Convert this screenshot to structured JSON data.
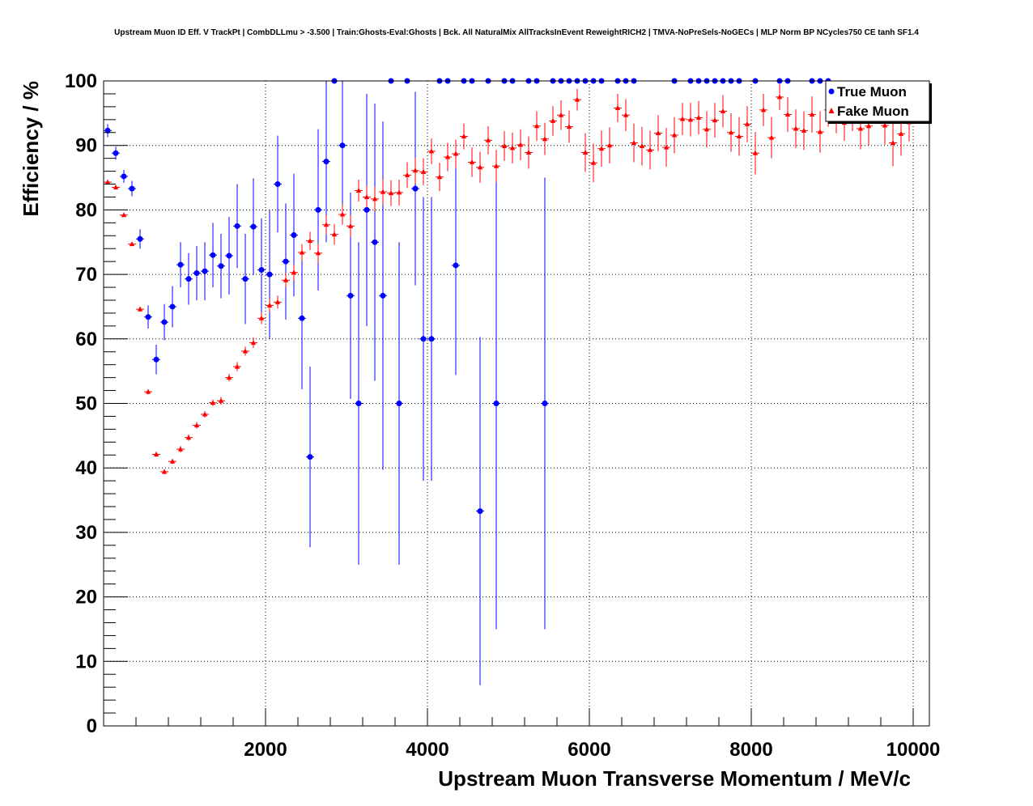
{
  "chart_data": {
    "type": "scatter",
    "title": "Upstream Muon ID Eff. V TrackPt | CombDLLmu > -3.500 | Train:Ghosts-Eval:Ghosts | Bck. All NaturalMix AllTracksInEvent ReweightRICH2 | TMVA-NoPreSels-NoGECs | MLP Norm BP NCycles750 CE tanh SF1.4",
    "xlabel": "Upstream Muon Transverse Momentum / MeV/c",
    "ylabel": "Efficiency / %",
    "xlim": [
      0,
      10200
    ],
    "ylim": [
      0,
      100
    ],
    "x_ticks": [
      2000,
      4000,
      6000,
      8000,
      10000
    ],
    "y_ticks": [
      0,
      10,
      20,
      30,
      40,
      50,
      60,
      70,
      80,
      90,
      100
    ],
    "grid": true,
    "legend_position": "top-right",
    "colors": {
      "true_muon": "#0000ff",
      "fake_muon": "#ff0000"
    },
    "series": [
      {
        "name": "True Muon",
        "marker": "circle",
        "color": "#0000ff",
        "points": [
          [
            50,
            92.3,
            1.0
          ],
          [
            150,
            88.8,
            1.0
          ],
          [
            250,
            85.2,
            1.0
          ],
          [
            350,
            83.3,
            1.2
          ],
          [
            450,
            75.5,
            1.5
          ],
          [
            550,
            63.4,
            1.8
          ],
          [
            650,
            56.8,
            2.3
          ],
          [
            750,
            62.6,
            2.8
          ],
          [
            850,
            65.0,
            3.2
          ],
          [
            950,
            71.5,
            3.5
          ],
          [
            1050,
            69.3,
            4.0
          ],
          [
            1150,
            70.2,
            4.2
          ],
          [
            1250,
            70.5,
            4.5
          ],
          [
            1350,
            73.0,
            5.0
          ],
          [
            1450,
            71.3,
            5.0
          ],
          [
            1550,
            72.9,
            6.0
          ],
          [
            1650,
            77.5,
            6.5
          ],
          [
            1750,
            69.3,
            7.0
          ],
          [
            1850,
            77.4,
            7.5
          ],
          [
            1950,
            70.7,
            8.0
          ],
          [
            2050,
            70.0,
            10.0
          ],
          [
            2150,
            84.0,
            7.5
          ],
          [
            2250,
            72.0,
            9.0
          ],
          [
            2350,
            76.1,
            9.5
          ],
          [
            2450,
            63.2,
            11.0
          ],
          [
            2550,
            41.7,
            14.0
          ],
          [
            2650,
            80.0,
            12.5
          ],
          [
            2750,
            87.5,
            12.5
          ],
          [
            2850,
            100,
            0
          ],
          [
            2950,
            90.0,
            10.0
          ],
          [
            3050,
            66.7,
            16.0
          ],
          [
            3150,
            50.0,
            25.0
          ],
          [
            3250,
            80.0,
            18.0
          ],
          [
            3350,
            75.0,
            21.5
          ],
          [
            3450,
            66.7,
            27.0
          ],
          [
            3550,
            100,
            0
          ],
          [
            3650,
            50.0,
            25.0
          ],
          [
            3750,
            100,
            0
          ],
          [
            3850,
            83.3,
            15.0
          ],
          [
            3950,
            60.0,
            22.0
          ],
          [
            4050,
            60.0,
            22.0
          ],
          [
            4150,
            100,
            0
          ],
          [
            4250,
            100,
            0
          ],
          [
            4350,
            71.4,
            17.0
          ],
          [
            4450,
            100,
            0
          ],
          [
            4550,
            100,
            0
          ],
          [
            4650,
            33.3,
            27.0
          ],
          [
            4750,
            100,
            0
          ],
          [
            4850,
            50.0,
            35.0
          ],
          [
            4950,
            100,
            0
          ],
          [
            5050,
            100,
            0
          ],
          [
            5250,
            100,
            0
          ],
          [
            5350,
            100,
            0
          ],
          [
            5450,
            50.0,
            35.0
          ],
          [
            5550,
            100,
            0
          ],
          [
            5650,
            100,
            0
          ],
          [
            5750,
            100,
            0
          ],
          [
            5850,
            100,
            0
          ],
          [
            5950,
            100,
            0
          ],
          [
            6050,
            100,
            0
          ],
          [
            6150,
            100,
            0
          ],
          [
            6350,
            100,
            0
          ],
          [
            6450,
            100,
            0
          ],
          [
            6550,
            100,
            0
          ],
          [
            7050,
            100,
            0
          ],
          [
            7250,
            100,
            0
          ],
          [
            7350,
            100,
            0
          ],
          [
            7450,
            100,
            0
          ],
          [
            7550,
            100,
            0
          ],
          [
            7650,
            100,
            0
          ],
          [
            7750,
            100,
            0
          ],
          [
            7850,
            100,
            0
          ],
          [
            8050,
            100,
            0
          ],
          [
            8350,
            100,
            0
          ],
          [
            8450,
            100,
            0
          ],
          [
            8750,
            100,
            0
          ],
          [
            8850,
            100,
            0
          ],
          [
            8950,
            100,
            0
          ]
        ]
      },
      {
        "name": "Fake Muon",
        "marker": "triangle",
        "color": "#ff0000",
        "points": [
          [
            50,
            84.3,
            0.3
          ],
          [
            150,
            83.5,
            0.3
          ],
          [
            250,
            79.2,
            0.3
          ],
          [
            350,
            74.7,
            0.3
          ],
          [
            450,
            64.6,
            0.4
          ],
          [
            550,
            51.8,
            0.4
          ],
          [
            650,
            42.1,
            0.4
          ],
          [
            750,
            39.4,
            0.4
          ],
          [
            850,
            41.0,
            0.4
          ],
          [
            950,
            42.9,
            0.5
          ],
          [
            1050,
            44.7,
            0.5
          ],
          [
            1150,
            46.6,
            0.5
          ],
          [
            1250,
            48.3,
            0.5
          ],
          [
            1350,
            50.1,
            0.5
          ],
          [
            1450,
            50.4,
            0.6
          ],
          [
            1550,
            54.0,
            0.6
          ],
          [
            1650,
            55.7,
            0.7
          ],
          [
            1750,
            58.1,
            0.7
          ],
          [
            1850,
            59.4,
            0.8
          ],
          [
            1950,
            63.2,
            0.9
          ],
          [
            2050,
            65.2,
            1.0
          ],
          [
            2150,
            65.7,
            1.0
          ],
          [
            2250,
            69.1,
            1.1
          ],
          [
            2350,
            70.3,
            1.2
          ],
          [
            2450,
            73.4,
            1.3
          ],
          [
            2550,
            75.2,
            1.4
          ],
          [
            2650,
            73.3,
            1.5
          ],
          [
            2750,
            77.7,
            1.5
          ],
          [
            2850,
            76.2,
            1.6
          ],
          [
            2950,
            79.3,
            1.6
          ],
          [
            3050,
            77.5,
            1.7
          ],
          [
            3150,
            83.0,
            1.7
          ],
          [
            3250,
            82.0,
            1.8
          ],
          [
            3350,
            81.7,
            1.9
          ],
          [
            3450,
            82.8,
            2.0
          ],
          [
            3550,
            82.6,
            2.0
          ],
          [
            3650,
            82.7,
            2.0
          ],
          [
            3750,
            85.4,
            2.0
          ],
          [
            3850,
            86.1,
            2.0
          ],
          [
            3950,
            85.9,
            2.1
          ],
          [
            4050,
            89.1,
            2.0
          ],
          [
            4150,
            85.1,
            2.2
          ],
          [
            4250,
            88.2,
            2.2
          ],
          [
            4350,
            88.7,
            2.2
          ],
          [
            4450,
            91.4,
            2.0
          ],
          [
            4550,
            87.4,
            2.3
          ],
          [
            4650,
            86.6,
            2.4
          ],
          [
            4750,
            90.8,
            2.2
          ],
          [
            4850,
            86.8,
            2.5
          ],
          [
            4950,
            89.9,
            2.3
          ],
          [
            5050,
            89.6,
            2.4
          ],
          [
            5150,
            90.1,
            2.4
          ],
          [
            5250,
            88.9,
            2.5
          ],
          [
            5350,
            93.0,
            2.3
          ],
          [
            5450,
            91.0,
            2.5
          ],
          [
            5550,
            93.8,
            2.3
          ],
          [
            5650,
            94.7,
            2.3
          ],
          [
            5750,
            92.9,
            2.5
          ],
          [
            5850,
            97.1,
            1.7
          ],
          [
            5950,
            88.9,
            3.0
          ],
          [
            6050,
            87.3,
            3.0
          ],
          [
            6150,
            89.5,
            2.8
          ],
          [
            6250,
            90.0,
            2.8
          ],
          [
            6350,
            95.8,
            2.2
          ],
          [
            6450,
            94.7,
            2.5
          ],
          [
            6550,
            90.4,
            3.0
          ],
          [
            6650,
            89.9,
            3.0
          ],
          [
            6750,
            89.3,
            3.0
          ],
          [
            6850,
            91.9,
            2.8
          ],
          [
            6950,
            89.7,
            3.0
          ],
          [
            7050,
            91.6,
            2.8
          ],
          [
            7150,
            94.1,
            2.5
          ],
          [
            7250,
            94.0,
            2.6
          ],
          [
            7350,
            94.3,
            2.6
          ],
          [
            7450,
            92.5,
            2.8
          ],
          [
            7550,
            93.9,
            2.7
          ],
          [
            7650,
            95.3,
            2.5
          ],
          [
            7750,
            92.0,
            3.0
          ],
          [
            7850,
            91.4,
            3.0
          ],
          [
            7950,
            93.3,
            2.8
          ],
          [
            8050,
            88.8,
            3.3
          ],
          [
            8150,
            95.5,
            2.5
          ],
          [
            8250,
            91.2,
            3.2
          ],
          [
            8350,
            97.5,
            2.0
          ],
          [
            8450,
            94.8,
            2.7
          ],
          [
            8550,
            92.6,
            3.0
          ],
          [
            8650,
            92.3,
            3.0
          ],
          [
            8750,
            94.8,
            2.8
          ],
          [
            8850,
            92.1,
            3.2
          ],
          [
            8950,
            95.5,
            2.6
          ],
          [
            9050,
            94.7,
            2.8
          ],
          [
            9150,
            93.5,
            2.8
          ],
          [
            9250,
            94.9,
            2.7
          ],
          [
            9350,
            92.6,
            3.2
          ],
          [
            9450,
            93.0,
            3.0
          ],
          [
            9550,
            96.0,
            2.4
          ],
          [
            9650,
            93.1,
            3.0
          ],
          [
            9750,
            90.4,
            3.6
          ],
          [
            9850,
            91.8,
            3.4
          ],
          [
            9950,
            93.6,
            3.0
          ]
        ]
      }
    ]
  }
}
